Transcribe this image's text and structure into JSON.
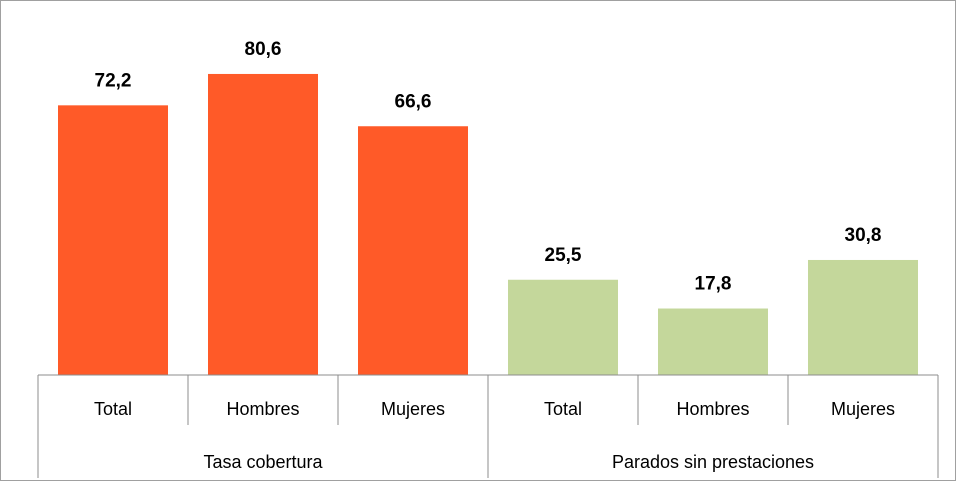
{
  "chart_data": {
    "type": "bar",
    "groups": [
      {
        "name": "Tasa cobertura",
        "color": "#ff5a28",
        "categories": [
          "Total",
          "Hombres",
          "Mujeres"
        ],
        "values": [
          72.2,
          80.6,
          66.6
        ],
        "value_labels": [
          "72,2",
          "80,6",
          "66,6"
        ]
      },
      {
        "name": "Parados sin prestaciones",
        "color": "#c4d79b",
        "categories": [
          "Total",
          "Hombres",
          "Mujeres"
        ],
        "values": [
          25.5,
          17.8,
          30.8
        ],
        "value_labels": [
          "25,5",
          "17,8",
          "30,8"
        ]
      }
    ]
  }
}
